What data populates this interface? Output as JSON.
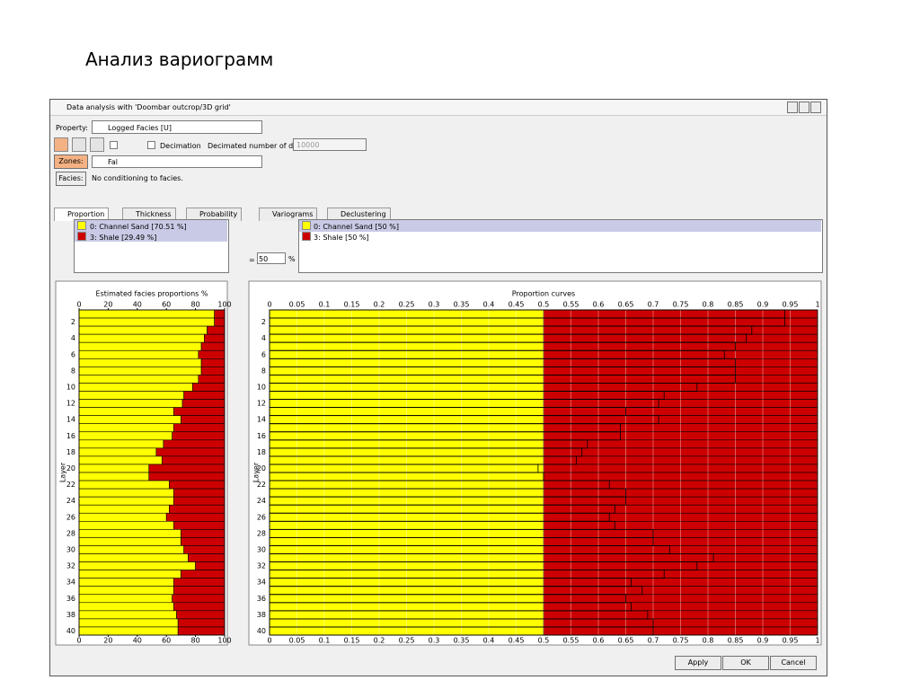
{
  "slide_title": "Анализ вариограмм",
  "window": {
    "title": "Data analysis with 'Doombar outcrop/3D grid'",
    "property_label": "Property:",
    "property_value": "Logged Facies [U]",
    "decimation": "Decimation",
    "decimated_label": "Decimated number of data:",
    "decimated_value": "10000",
    "zones_label": "Zones:",
    "zones_value": "Fal",
    "facies_label": "Facies:",
    "facies_value": "No conditioning to facies.",
    "tabs": [
      "Proportion",
      "Thickness",
      "Probability",
      "Variograms",
      "Declustering"
    ],
    "left_legend": [
      "0: Channel Sand [70.51 %]",
      "3: Shale [29.49 %]"
    ],
    "right_legend": [
      "0: Channel Sand [50 %]",
      "3: Shale [50 %]"
    ],
    "equals": "=",
    "percent_value": "50",
    "percent_sign": "%",
    "buttons": [
      "Apply",
      "OK",
      "Cancel"
    ]
  },
  "chart_data": [
    {
      "type": "stacked-hbar",
      "title": "Estimated facies proportions %",
      "y_label": "Layer",
      "categories": [
        null,
        "2",
        null,
        "4",
        null,
        "6",
        null,
        "8",
        null,
        "10",
        null,
        "12",
        null,
        "14",
        null,
        "16",
        null,
        "18",
        null,
        "20",
        null,
        "22",
        null,
        "24",
        null,
        "26",
        null,
        "28",
        null,
        "30",
        null,
        "32",
        null,
        "34",
        null,
        "36",
        null,
        "38",
        null,
        "40"
      ],
      "xlim": [
        0,
        100
      ],
      "xticks": [
        0,
        20,
        40,
        60,
        80,
        100
      ],
      "grid": false,
      "series": [
        {
          "color": "#ffff00",
          "values": [
            93,
            93,
            88,
            86,
            84,
            82,
            84,
            84,
            82,
            78,
            72,
            71,
            65,
            70,
            65,
            64,
            58,
            53,
            57,
            48,
            48,
            62,
            65,
            65,
            62,
            60,
            65,
            70,
            70,
            72,
            75,
            80,
            70,
            65,
            65,
            64,
            65,
            67,
            68,
            68
          ]
        },
        {
          "color": "#cc0000",
          "values": [
            7,
            7,
            12,
            14,
            16,
            18,
            16,
            16,
            18,
            22,
            28,
            29,
            35,
            30,
            35,
            36,
            42,
            47,
            43,
            52,
            52,
            38,
            35,
            35,
            38,
            40,
            35,
            30,
            30,
            28,
            25,
            20,
            30,
            35,
            35,
            36,
            35,
            33,
            32,
            32
          ]
        }
      ]
    },
    {
      "type": "stacked-hbar",
      "title": "Proportion curves",
      "y_label": "Layer",
      "categories": [
        null,
        "2",
        null,
        "4",
        null,
        "6",
        null,
        "8",
        null,
        "10",
        null,
        "12",
        null,
        "14",
        null,
        "16",
        null,
        "18",
        null,
        "20",
        null,
        "22",
        null,
        "24",
        null,
        "26",
        null,
        "28",
        null,
        "30",
        null,
        "32",
        null,
        "34",
        null,
        "36",
        null,
        "38",
        null,
        "40"
      ],
      "xlim": [
        0,
        1
      ],
      "xticks": [
        0,
        0.05,
        0.1,
        0.15,
        0.2,
        0.25,
        0.3,
        0.35,
        0.4,
        0.45,
        0.5,
        0.55,
        0.6,
        0.65,
        0.7,
        0.75,
        0.8,
        0.85,
        0.9,
        0.95,
        1
      ],
      "grid": true,
      "series": [
        {
          "color": "#ffff00",
          "values": [
            0.5,
            0.5,
            0.5,
            0.5,
            0.5,
            0.5,
            0.5,
            0.5,
            0.5,
            0.5,
            0.5,
            0.5,
            0.5,
            0.5,
            0.5,
            0.5,
            0.5,
            0.5,
            0.5,
            0.5,
            0.5,
            0.5,
            0.5,
            0.5,
            0.5,
            0.5,
            0.5,
            0.5,
            0.5,
            0.5,
            0.5,
            0.5,
            0.5,
            0.5,
            0.5,
            0.5,
            0.5,
            0.5,
            0.5,
            0.5
          ]
        },
        {
          "color": "#cc0000",
          "values": [
            0.5,
            0.5,
            0.5,
            0.5,
            0.5,
            0.5,
            0.5,
            0.5,
            0.5,
            0.5,
            0.5,
            0.5,
            0.5,
            0.5,
            0.5,
            0.5,
            0.5,
            0.5,
            0.5,
            0.5,
            0.5,
            0.5,
            0.5,
            0.5,
            0.5,
            0.5,
            0.5,
            0.5,
            0.5,
            0.5,
            0.5,
            0.5,
            0.5,
            0.5,
            0.5,
            0.5,
            0.5,
            0.5,
            0.5,
            0.5
          ]
        }
      ],
      "bars": [
        0.94,
        0.94,
        0.88,
        0.87,
        0.85,
        0.83,
        0.85,
        0.85,
        0.85,
        0.78,
        0.72,
        0.71,
        0.65,
        0.71,
        0.64,
        0.64,
        0.58,
        0.57,
        0.56,
        0.49,
        0.5,
        0.62,
        0.65,
        0.65,
        0.63,
        0.62,
        0.63,
        0.7,
        0.7,
        0.73,
        0.81,
        0.78,
        0.72,
        0.66,
        0.68,
        0.65,
        0.66,
        0.69,
        0.7,
        0.7
      ]
    }
  ]
}
